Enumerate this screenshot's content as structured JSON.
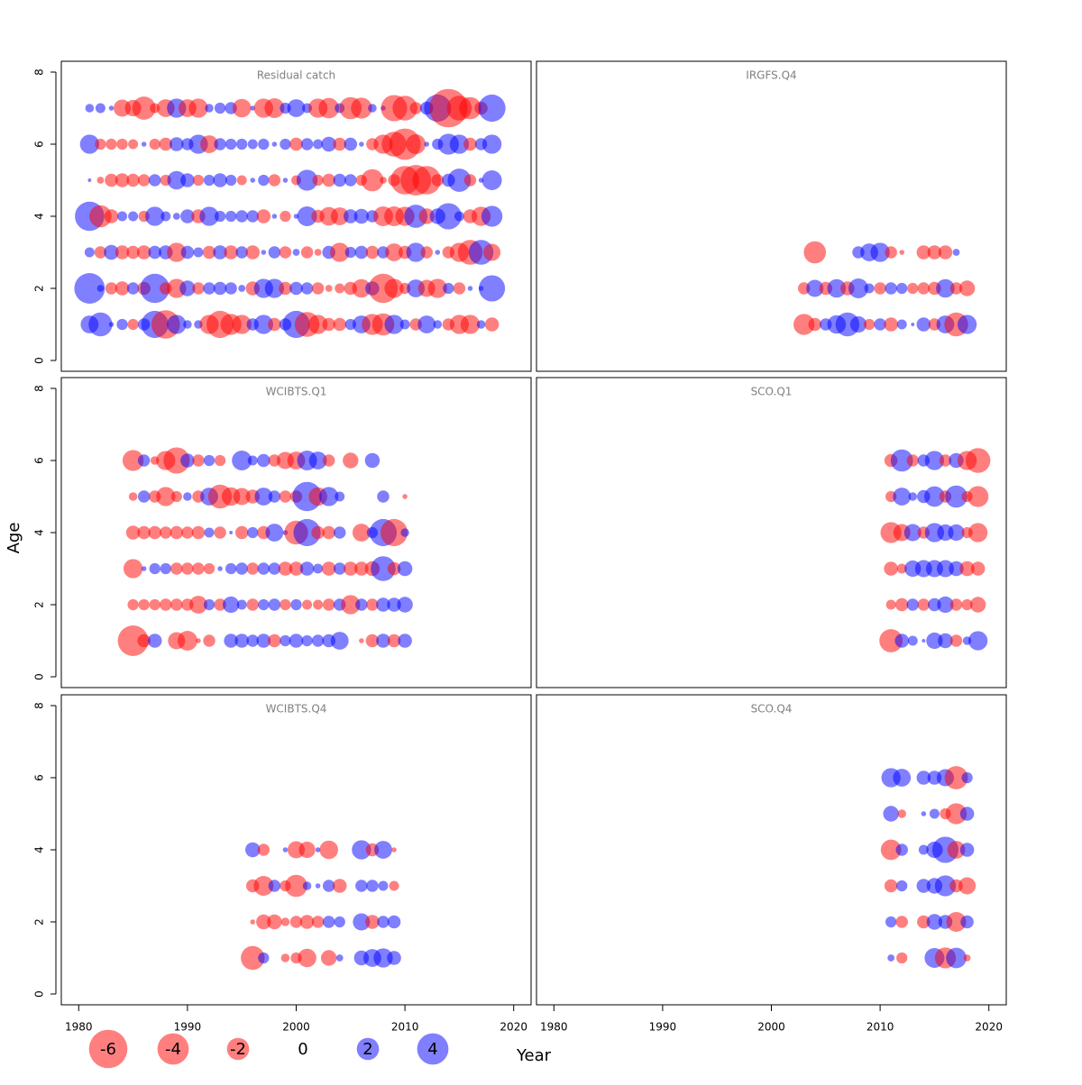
{
  "figure": {
    "xlabel": "Year",
    "ylabel": "Age",
    "legend_values": [
      -6,
      -4,
      -2,
      0,
      2,
      4
    ],
    "positive_color": "#0000ff",
    "negative_color": "#ff0000"
  },
  "chart_data": [
    {
      "type": "scatter",
      "title": "Residual catch",
      "xlim": [
        1978.4,
        2021.6
      ],
      "ylim": [
        -0.3,
        8.3
      ],
      "yticks": [
        0,
        2,
        4,
        6,
        8
      ],
      "x": [
        1981,
        1982,
        1983,
        1984,
        1985,
        1986,
        1987,
        1988,
        1989,
        1990,
        1991,
        1992,
        1993,
        1994,
        1995,
        1996,
        1997,
        1998,
        1999,
        2000,
        2001,
        2002,
        2003,
        2004,
        2005,
        2006,
        2007,
        2008,
        2009,
        2010,
        2011,
        2012,
        2013,
        2014,
        2015,
        2016,
        2017,
        2018
      ],
      "y": [
        7,
        6,
        5,
        4,
        3,
        2,
        1
      ],
      "values": [
        [
          0.3,
          0.4,
          0.1,
          -1.2,
          -1.1,
          -2.2,
          -0.4,
          -1.3,
          1.5,
          -1.3,
          -1.5,
          0.3,
          0.5,
          0.6,
          -1.4,
          0.1,
          -1.5,
          -1.6,
          0.5,
          1.3,
          0.4,
          -1.5,
          -1.7,
          0.4,
          -2,
          -1.8,
          0.3,
          0.1,
          -2.8,
          -2.5,
          -0.6,
          0.7,
          3,
          -6,
          -2.5,
          -2,
          -0.7,
          3
        ],
        [
          1.5,
          -0.5,
          -0.5,
          -0.5,
          -0.4,
          0.1,
          -0.5,
          -0.7,
          0.8,
          0.6,
          1.5,
          -1.3,
          0.6,
          0.5,
          0.5,
          0.4,
          0.5,
          0.1,
          0.5,
          -0.7,
          0.6,
          0.4,
          0.9,
          -0.7,
          0.7,
          0.1,
          -0.6,
          -1.5,
          -2.5,
          -4,
          -1.6,
          0.1,
          0.5,
          1.8,
          1.5,
          -0.7,
          0.6,
          1.5
        ],
        [
          0.05,
          -0.2,
          -0.7,
          -0.8,
          -0.7,
          -0.6,
          0.6,
          -0.5,
          1.4,
          0.8,
          -0.5,
          0.5,
          0.8,
          0.5,
          -0.4,
          0.1,
          0.5,
          -0.6,
          0.1,
          -0.4,
          1.8,
          -0.5,
          -0.7,
          0.7,
          0.6,
          -0.5,
          -2,
          -0.2,
          -0.6,
          -3.3,
          -3.8,
          -3.3,
          -0.6,
          0.7,
          2.2,
          -0.6,
          0.1,
          1.6
        ],
        [
          3.5,
          -2,
          -0.8,
          0.4,
          0.4,
          -0.5,
          1.5,
          0.4,
          0.2,
          0.8,
          -0.8,
          1.5,
          0.5,
          0.5,
          0.6,
          0.6,
          -0.8,
          0.1,
          -0.5,
          0.1,
          1.6,
          -0.7,
          -1.4,
          -1.3,
          0.8,
          0.9,
          0.6,
          -1.6,
          -1.6,
          -1.5,
          2.2,
          -1,
          1,
          2.8,
          0.4,
          -0.8,
          -1.5,
          1.8
        ],
        [
          0.4,
          -0.6,
          0.9,
          -0.8,
          -0.7,
          -0.8,
          0.7,
          0.8,
          -1.5,
          0.7,
          0.4,
          -0.7,
          0.8,
          -0.8,
          0.6,
          -0.8,
          0.1,
          0.6,
          -0.6,
          0.2,
          -0.6,
          -0.2,
          0.7,
          -1.5,
          0.5,
          0.7,
          -0.7,
          0.6,
          -1.3,
          -0.7,
          1.5,
          -0.6,
          0.1,
          -0.6,
          -1.5,
          -2.5,
          2.5,
          -1.2
        ],
        [
          3.8,
          0.2,
          -0.6,
          -0.8,
          0.6,
          -0.7,
          3.5,
          -0.6,
          -1.5,
          1,
          -0.6,
          0.6,
          0.7,
          0.6,
          0.2,
          -0.8,
          1.5,
          1.5,
          -0.7,
          0.7,
          0.6,
          -0.6,
          -0.2,
          -0.4,
          -0.7,
          -1.4,
          0.8,
          -3.5,
          -1.5,
          -0.5,
          1.3,
          -1.2,
          -1.5,
          0.5,
          -0.6,
          0.1,
          0.1,
          2.8
        ],
        [
          1.3,
          2.3,
          0.1,
          0.5,
          -0.5,
          0.6,
          3,
          -3.3,
          1.5,
          0.3,
          0.3,
          -1.5,
          -3,
          -1.8,
          -1.5,
          0.6,
          1.5,
          -0.7,
          0.6,
          3,
          -2.5,
          -1.5,
          -0.7,
          -0.7,
          0.5,
          1.3,
          -1.8,
          -2,
          1.5,
          0.4,
          -0.6,
          1.3,
          0.3,
          -0.6,
          -1.5,
          -1.5,
          0.3,
          -0.8
        ]
      ]
    },
    {
      "type": "scatter",
      "title": "IRGFS.Q4",
      "xlim": [
        1978.4,
        2021.6
      ],
      "ylim": [
        -0.3,
        8.3
      ],
      "x": [
        2003,
        2004,
        2005,
        2006,
        2007,
        2008,
        2009,
        2010,
        2011,
        2012,
        2013,
        2014,
        2015,
        2016,
        2017,
        2018
      ],
      "y": [
        3,
        2,
        1
      ],
      "values": [
        [
          null,
          -2,
          null,
          null,
          null,
          0.6,
          1.3,
          1.5,
          -0.6,
          -0.1,
          null,
          -0.8,
          -0.8,
          -0.8,
          0.2,
          null
        ],
        [
          -0.6,
          1.2,
          -0.7,
          1.4,
          -0.8,
          1.6,
          0.4,
          -0.6,
          0.6,
          0.5,
          -0.5,
          -0.6,
          -0.7,
          1.4,
          -0.6,
          -1
        ],
        [
          -1.8,
          -0.7,
          0.6,
          1.4,
          2.3,
          1.1,
          -0.5,
          0.6,
          -0.8,
          0.4,
          0.05,
          0.8,
          -0.6,
          1.3,
          -2.3,
          1.5
        ]
      ]
    },
    {
      "type": "scatter",
      "title": "WCIBTS.Q1",
      "xlim": [
        1978.4,
        2021.6
      ],
      "ylim": [
        -0.3,
        8.3
      ],
      "yticks": [
        0,
        2,
        4,
        6,
        8
      ],
      "x": [
        1985,
        1986,
        1987,
        1988,
        1989,
        1990,
        1991,
        1992,
        1993,
        1994,
        1995,
        1996,
        1997,
        1998,
        1999,
        2000,
        2001,
        2002,
        2003,
        2004,
        2005,
        2006,
        2007,
        2008,
        2009,
        2010
      ],
      "y": [
        6,
        5,
        4,
        3,
        2,
        1
      ],
      "values": [
        [
          -1.8,
          0.6,
          -0.3,
          -1.5,
          -2.8,
          0.8,
          -0.6,
          0.5,
          -0.5,
          null,
          1.6,
          0.4,
          0.7,
          -0.6,
          -1.2,
          -1.3,
          1.6,
          1.3,
          -0.6,
          null,
          -1,
          null,
          0.9,
          null,
          null,
          null
        ],
        [
          -0.3,
          0.6,
          -0.6,
          -1.5,
          -0.5,
          0.3,
          -0.6,
          1.3,
          -2.3,
          -1.4,
          -1.2,
          -0.8,
          1.3,
          0.6,
          -0.6,
          -0.6,
          3.5,
          -1.4,
          1.5,
          0.4,
          null,
          null,
          null,
          0.6,
          null,
          -0.1
        ],
        [
          -0.8,
          -0.7,
          -0.7,
          -0.6,
          -0.7,
          -0.6,
          -0.7,
          0.4,
          -0.6,
          0.05,
          -0.7,
          0.5,
          -0.7,
          1.3,
          0.1,
          -2.3,
          3,
          -0.7,
          -0.7,
          0.6,
          null,
          -1.3,
          0.5,
          3,
          -3,
          0.3
        ],
        [
          -1.5,
          0.1,
          0.5,
          0.5,
          -0.6,
          -0.6,
          -0.6,
          -0.5,
          0.1,
          0.5,
          0.6,
          -0.6,
          0.6,
          0.6,
          -0.8,
          -0.8,
          0.8,
          0.4,
          -0.8,
          0.6,
          -0.8,
          -0.8,
          -0.9,
          2.5,
          -0.7,
          0.9
        ],
        [
          -0.5,
          -0.5,
          -0.5,
          -0.6,
          -0.6,
          -0.6,
          -1.3,
          0.5,
          -0.6,
          1.1,
          0.4,
          -0.6,
          0.5,
          0.6,
          -0.5,
          0.5,
          -0.4,
          -0.4,
          -0.6,
          0.6,
          -1.5,
          0.6,
          -0.6,
          0.8,
          0.8,
          1
        ],
        [
          -3.8,
          -0.7,
          0.8,
          null,
          -1.2,
          -1.6,
          -0.1,
          -0.6,
          null,
          0.8,
          0.8,
          0.6,
          0.8,
          -0.7,
          0.5,
          0.8,
          0.5,
          0.6,
          0.7,
          1.3,
          null,
          -0.1,
          -0.7,
          0.8,
          -0.7,
          0.8
        ]
      ]
    },
    {
      "type": "scatter",
      "title": "SCO.Q1",
      "xlim": [
        1978.4,
        2021.6
      ],
      "ylim": [
        -0.3,
        8.3
      ],
      "x": [
        2011,
        2012,
        2013,
        2014,
        2015,
        2016,
        2017,
        2018,
        2019
      ],
      "y": [
        6,
        5,
        4,
        3,
        2,
        1
      ],
      "values": [
        [
          -0.7,
          2,
          -0.6,
          0.6,
          1.5,
          -0.6,
          0.9,
          -1.5,
          -2.5
        ],
        [
          -0.5,
          1.3,
          0.3,
          0.7,
          1.7,
          -0.6,
          2,
          -0.5,
          -1.8
        ],
        [
          -1.8,
          -1.2,
          1.2,
          -0.6,
          1.5,
          1.1,
          1.1,
          -0.5,
          -1.5
        ],
        [
          -0.8,
          -0.4,
          1.1,
          1.2,
          1.2,
          1.2,
          0.9,
          -0.9,
          -0.8
        ],
        [
          -0.4,
          -0.7,
          0.6,
          -0.6,
          0.7,
          1.1,
          -0.6,
          -0.5,
          -1
        ],
        [
          -2.2,
          0.8,
          0.4,
          0.05,
          1.1,
          0.9,
          -0.6,
          0.3,
          1.5
        ]
      ]
    },
    {
      "type": "scatter",
      "title": "WCIBTS.Q4",
      "xlim": [
        1978.4,
        2021.6
      ],
      "ylim": [
        -0.3,
        8.3
      ],
      "xticks": [
        1980,
        1990,
        2000,
        2010,
        2020
      ],
      "yticks": [
        0,
        2,
        4,
        6,
        8
      ],
      "x": [
        1996,
        1997,
        1998,
        1999,
        2000,
        2001,
        2002,
        2003,
        2004,
        2005,
        2006,
        2007,
        2008,
        2009
      ],
      "y": [
        4,
        3,
        2,
        1
      ],
      "values": [
        [
          0.9,
          -0.6,
          null,
          0.1,
          -1.2,
          -1.1,
          0.1,
          -1.4,
          null,
          null,
          1.5,
          -0.7,
          1.3,
          -0.1
        ],
        [
          -0.7,
          -1.6,
          0.6,
          -0.5,
          -2,
          0.3,
          0.1,
          0.6,
          -0.8,
          null,
          0.6,
          0.6,
          0.4,
          -0.4
        ],
        [
          -0.1,
          -0.9,
          -0.9,
          -0.3,
          -0.6,
          -0.8,
          -0.6,
          0.6,
          0.5,
          null,
          1.2,
          -0.8,
          0.6,
          0.7
        ],
        [
          -2.3,
          0.5,
          null,
          -0.3,
          -0.5,
          -1.4,
          null,
          -1,
          0.2,
          null,
          0.9,
          1.3,
          1.5,
          0.8
        ]
      ]
    },
    {
      "type": "scatter",
      "title": "SCO.Q4",
      "xlim": [
        1978.4,
        2021.6
      ],
      "ylim": [
        -0.3,
        8.3
      ],
      "xticks": [
        1980,
        1990,
        2000,
        2010,
        2020
      ],
      "x": [
        2011,
        2012,
        2013,
        2014,
        2015,
        2016,
        2017,
        2018
      ],
      "y": [
        6,
        5,
        4,
        3,
        2,
        1
      ],
      "values": [
        [
          1.5,
          1.3,
          null,
          0.8,
          0.8,
          1.2,
          -2.2,
          0.5
        ],
        [
          1,
          -0.3,
          null,
          0.1,
          0.4,
          -0.5,
          -1.8,
          0.8
        ],
        [
          -1.7,
          0.6,
          null,
          0.4,
          1.1,
          2.8,
          -1.3,
          0.8
        ],
        [
          -0.7,
          0.5,
          null,
          0.8,
          1,
          1.8,
          -0.7,
          -1.2
        ],
        [
          0.5,
          -0.6,
          null,
          -0.7,
          1,
          0.8,
          -1.6,
          0.7
        ],
        [
          0.2,
          -0.5,
          null,
          null,
          1.6,
          -1.8,
          1.7,
          -0.2
        ]
      ]
    }
  ]
}
